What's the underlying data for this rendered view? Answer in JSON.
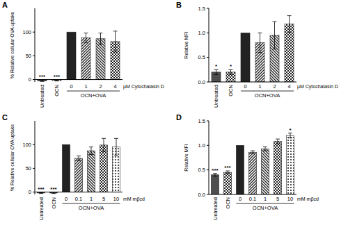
{
  "chart_data": [
    {
      "type": "bar",
      "panel": "A",
      "ylabel": "% Relative cellular OVA uptake",
      "categories": [
        "Untreated",
        "OCN",
        "0",
        "1",
        "2",
        "4"
      ],
      "values": [
        -3,
        -2,
        100,
        88,
        86,
        80
      ],
      "errors": [
        1,
        1,
        0,
        10,
        12,
        22
      ],
      "annotations": [
        "***",
        "***",
        null,
        null,
        null,
        null
      ],
      "group_label": "OCN+OVA",
      "xlabel": "µM Cytochalasin D",
      "ylim": [
        -5,
        150
      ],
      "yticks": [
        0,
        50,
        100
      ],
      "color": "#222222"
    },
    {
      "type": "bar",
      "panel": "B",
      "ylabel": "Relative MFI",
      "categories": [
        "Untreated",
        "OCN",
        "0",
        "1",
        "2",
        "4"
      ],
      "values": [
        0.2,
        0.2,
        1.0,
        0.8,
        0.95,
        1.18
      ],
      "errors": [
        0.05,
        0.05,
        0,
        0.2,
        0.28,
        0.17
      ],
      "annotations": [
        "*",
        "*",
        null,
        null,
        null,
        null
      ],
      "group_label": "OCN+OVA",
      "xlabel": "µM Cytochalasin D",
      "ylim": [
        0,
        1.5
      ],
      "yticks": [
        {
          "value": 0,
          "label": "0.0"
        },
        {
          "value": 0.5,
          "label": "0.5"
        },
        {
          "value": 1,
          "label": "1.0"
        },
        {
          "value": 1.5,
          "label": "1.5"
        }
      ],
      "color": "#222222"
    },
    {
      "type": "bar",
      "panel": "C",
      "ylabel": "% Relative cellular OVA uptake",
      "categories": [
        "Untreated",
        "OCN",
        "0",
        "0.1",
        "1",
        "5",
        "10"
      ],
      "values": [
        -2,
        -2,
        100,
        71,
        87,
        99,
        95
      ],
      "errors": [
        1,
        1,
        0,
        5,
        8,
        14,
        18
      ],
      "annotations": [
        "***",
        "***",
        null,
        null,
        null,
        null,
        null
      ],
      "group_label": "OCN+OVA",
      "xlabel": "mM mβcd",
      "ylim": [
        -5,
        150
      ],
      "yticks": [
        0,
        50,
        100
      ],
      "color": "#222222"
    },
    {
      "type": "bar",
      "panel": "D",
      "ylabel": "Relative MFI",
      "categories": [
        "Untreated",
        "OCN",
        "0",
        "0.1",
        "1",
        "5",
        "10"
      ],
      "values": [
        0.4,
        0.45,
        1.0,
        0.86,
        0.93,
        1.08,
        1.2
      ],
      "errors": [
        0.03,
        0.03,
        0,
        0.03,
        0.04,
        0.05,
        0.05
      ],
      "annotations": [
        "***",
        "***",
        null,
        null,
        null,
        null,
        "*"
      ],
      "group_label": "OCN+OVA",
      "xlabel": "mM mβcd",
      "ylim": [
        0,
        1.5
      ],
      "yticks": [
        {
          "value": 0,
          "label": "0.0"
        },
        {
          "value": 0.5,
          "label": "0.5"
        },
        {
          "value": 1,
          "label": "1.0"
        },
        {
          "value": 1.5,
          "label": "1.5"
        }
      ],
      "color": "#222222"
    }
  ]
}
